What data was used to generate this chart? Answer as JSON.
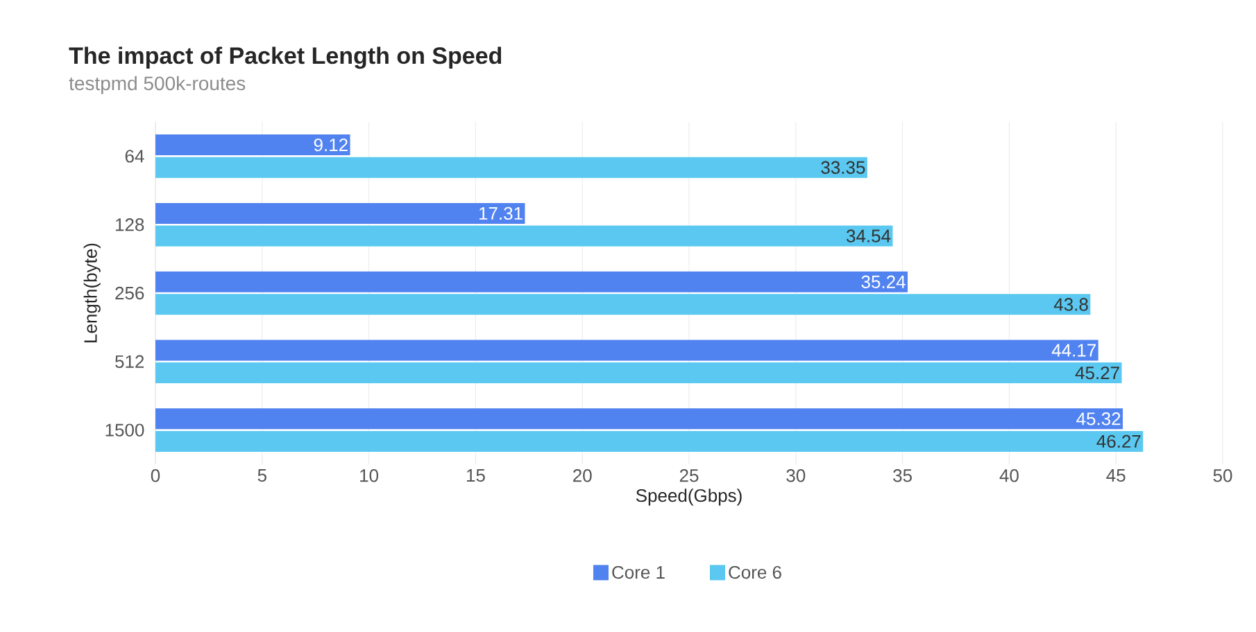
{
  "chart_data": {
    "type": "bar",
    "orientation": "horizontal",
    "title": "The impact of Packet Length on Speed",
    "subtitle": "testpmd 500k-routes",
    "xlabel": "Speed(Gbps)",
    "ylabel": "Length(byte)",
    "categories": [
      "64",
      "128",
      "256",
      "512",
      "1500"
    ],
    "series": [
      {
        "name": "Core 1",
        "color": "#5183f0",
        "values": [
          9.12,
          17.31,
          35.24,
          44.17,
          45.32
        ]
      },
      {
        "name": "Core 6",
        "color": "#5ac8f0",
        "values": [
          33.35,
          34.54,
          43.8,
          45.27,
          46.27
        ]
      }
    ],
    "xlim": [
      0,
      50
    ],
    "xticks": [
      0,
      5,
      10,
      15,
      20,
      25,
      30,
      35,
      40,
      45,
      50
    ],
    "grid": "x",
    "legend": "bottom",
    "data_labels": true
  }
}
